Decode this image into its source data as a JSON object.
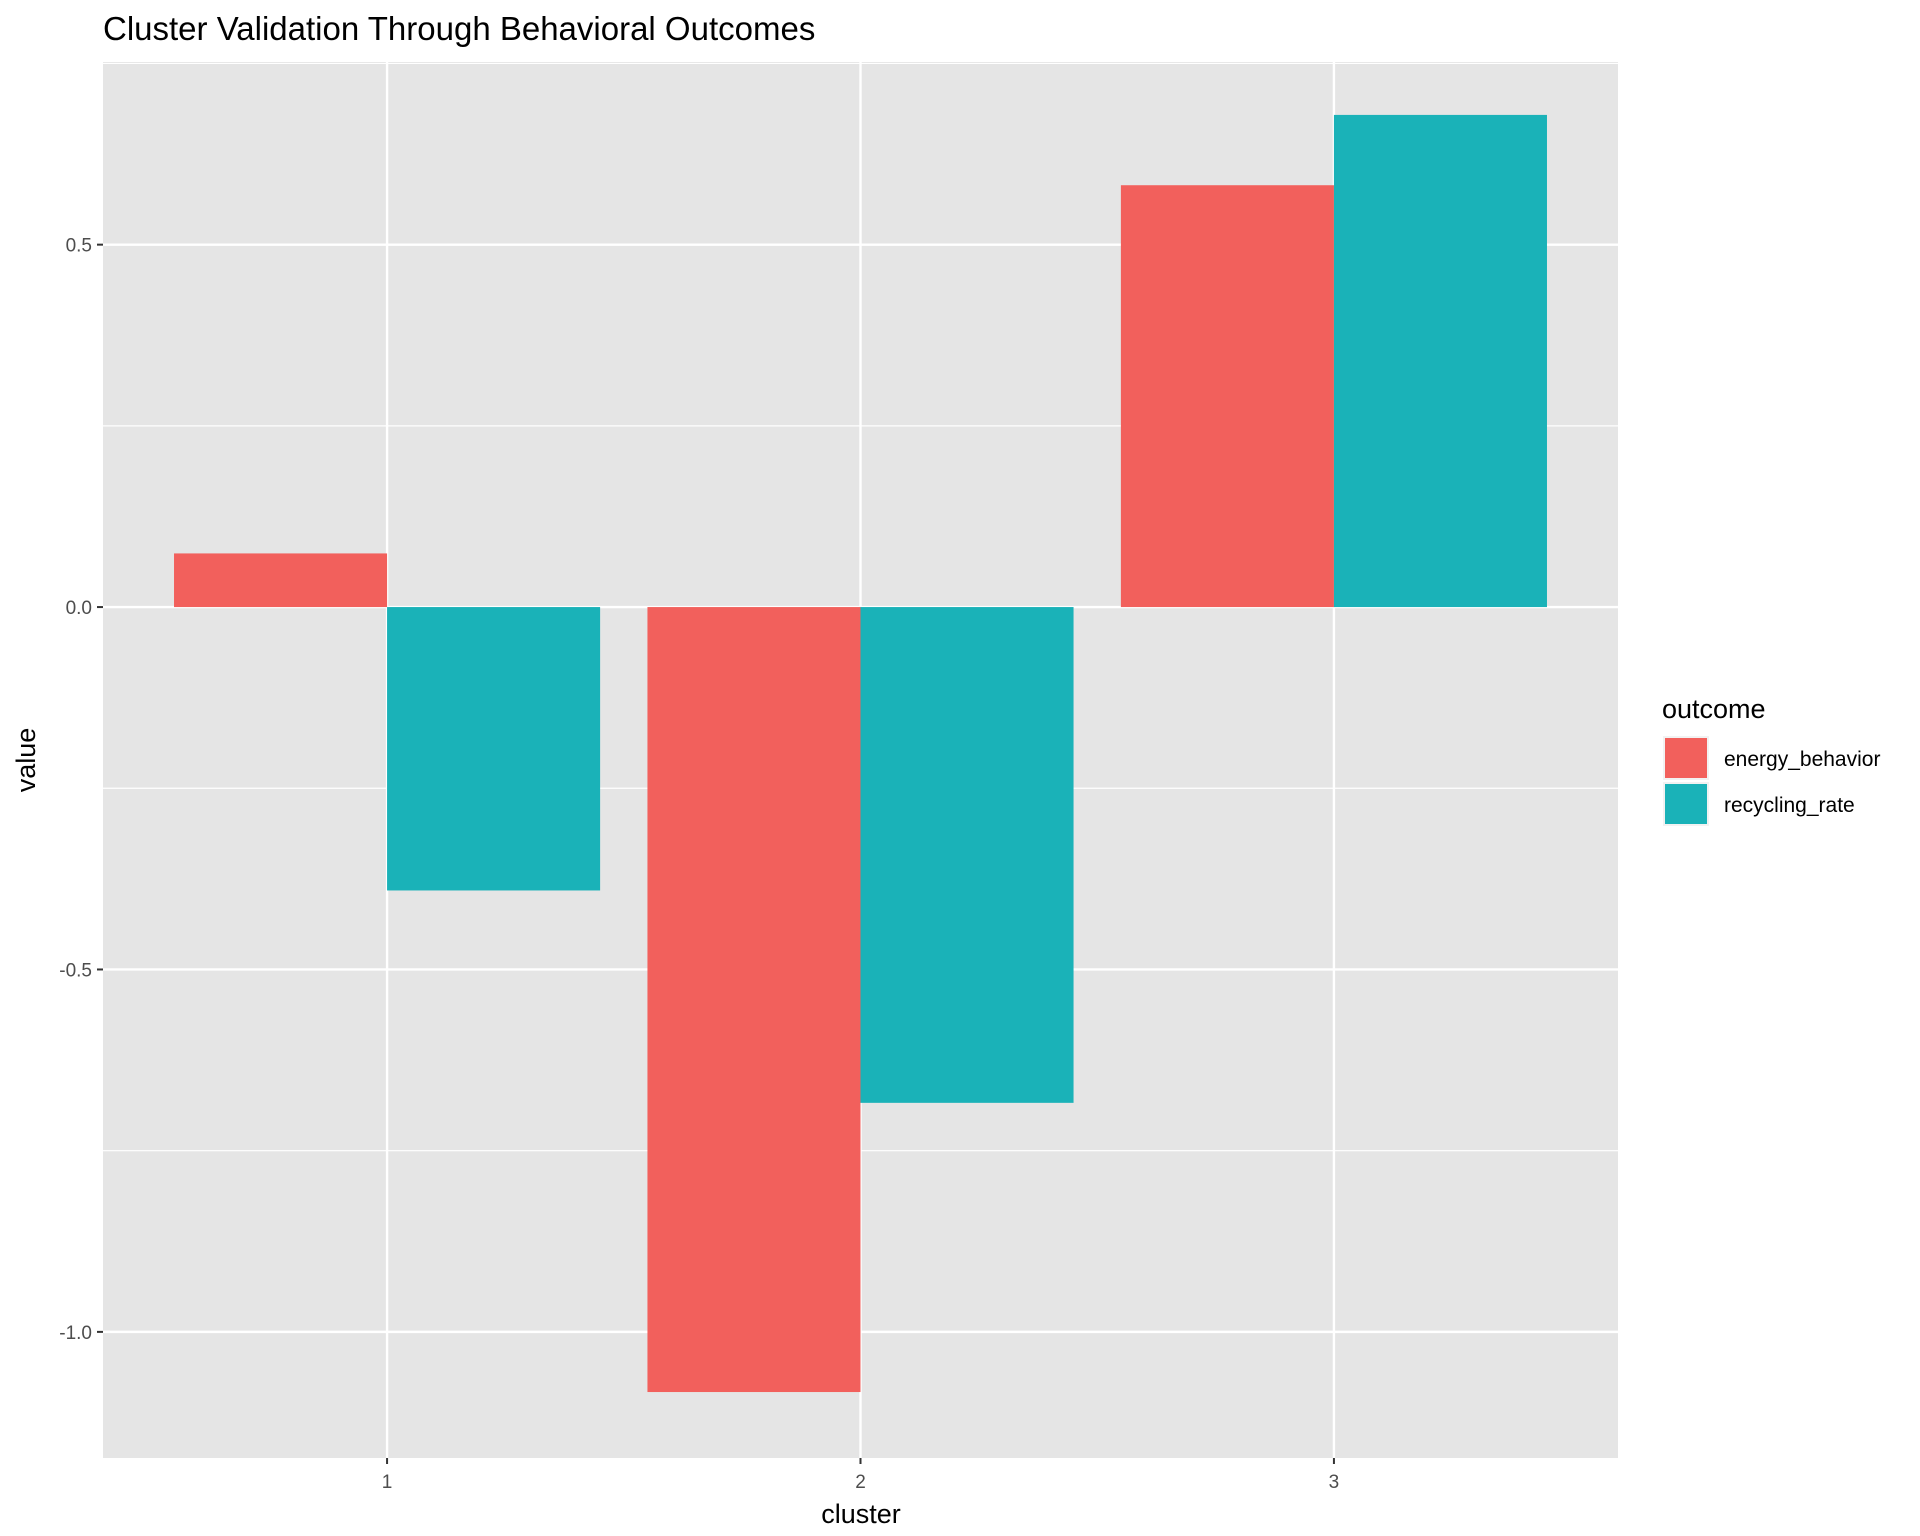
{
  "chart_data": {
    "type": "bar",
    "title": "Cluster Validation Through Behavioral Outcomes",
    "xlabel": "cluster",
    "ylabel": "value",
    "categories": [
      "1",
      "2",
      "3"
    ],
    "series": [
      {
        "name": "energy_behavior",
        "color": "#F2605C",
        "values": [
          0.074,
          -1.083,
          0.582
        ]
      },
      {
        "name": "recycling_rate",
        "color": "#1AB2B8",
        "values": [
          -0.391,
          -0.684,
          0.679
        ]
      }
    ],
    "ylim": [
      -1.174,
      0.752
    ],
    "yticks": [
      -1.0,
      -0.5,
      0.0,
      0.5
    ],
    "ytick_labels": [
      "-1.0",
      "-0.5",
      "0.0",
      "0.5"
    ],
    "grid": true,
    "legend_title": "outcome",
    "legend_position": "right",
    "panel_color": "#E5E5E5",
    "grid_color": "#FFFFFF"
  }
}
